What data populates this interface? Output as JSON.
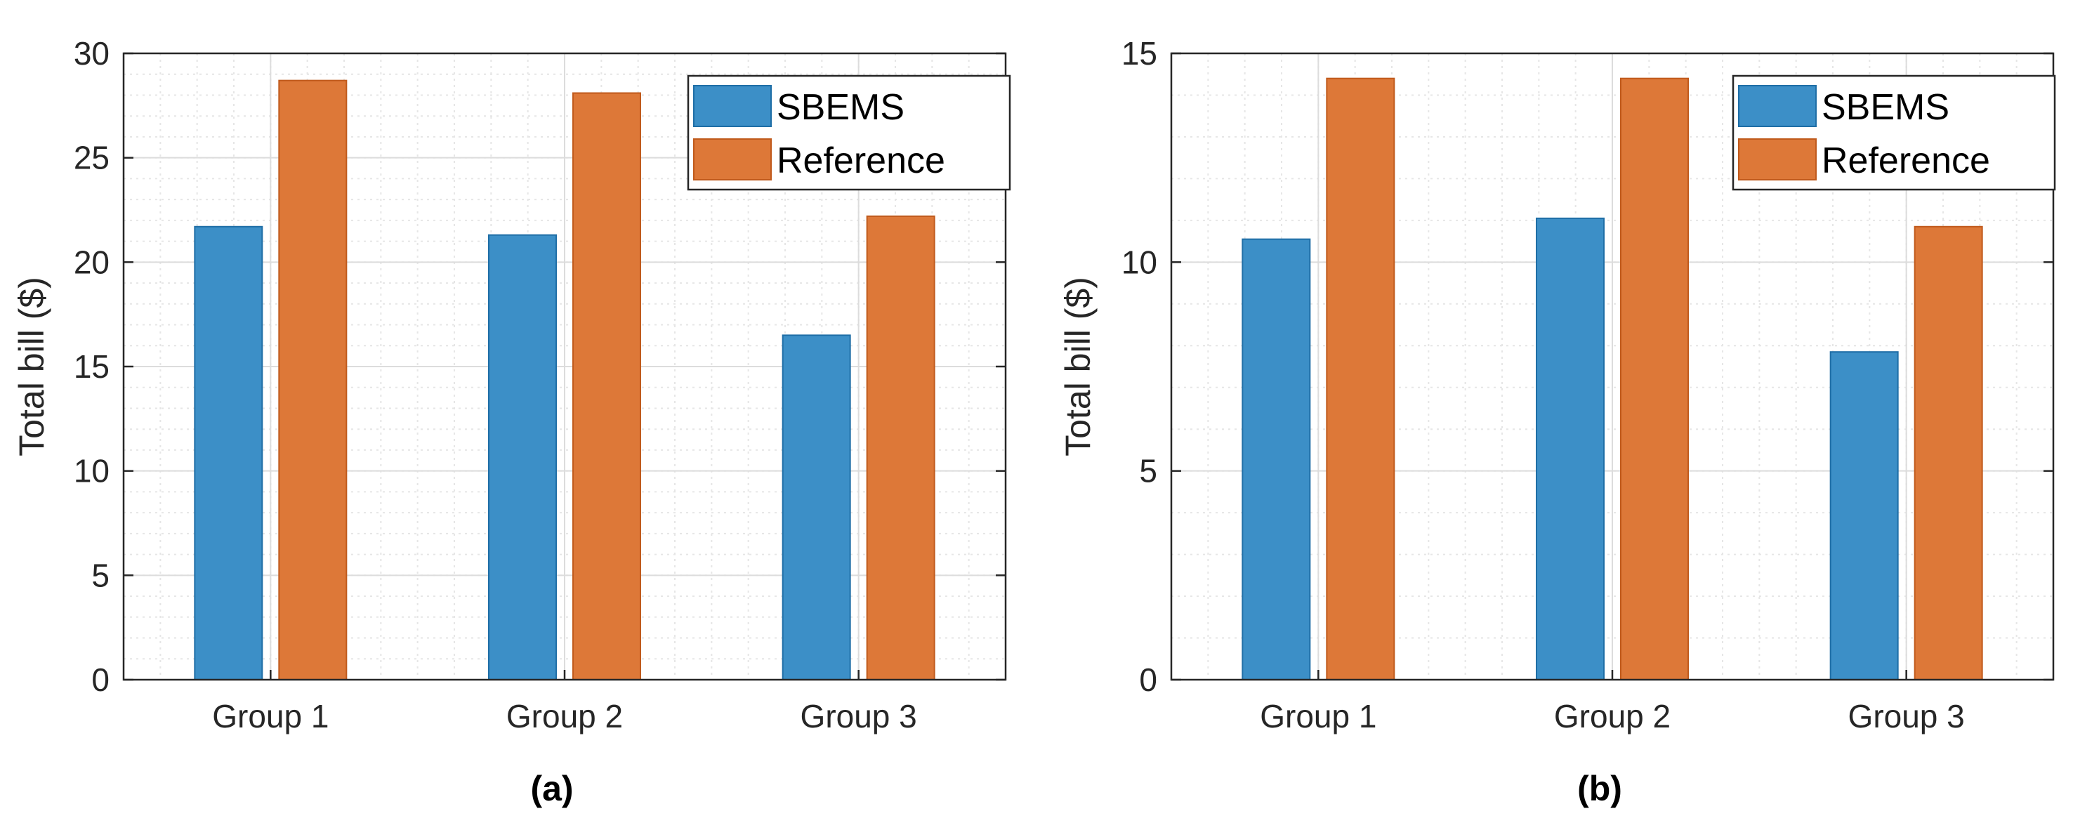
{
  "colors": {
    "series_1": "#3c8fc7",
    "series_1_edge": "#1f6ea6",
    "series_2": "#dd7838",
    "series_2_edge": "#c05a1c",
    "grid": "#dcdcdc",
    "axis": "#262626"
  },
  "chart_data": [
    {
      "type": "bar",
      "panel_label": "(a)",
      "ylabel": "Total bill ($)",
      "xlabel": "",
      "categories": [
        "Group 1",
        "Group 2",
        "Group 3"
      ],
      "ylim": [
        0,
        30
      ],
      "yticks": [
        0,
        5,
        10,
        15,
        20,
        25,
        30
      ],
      "grid": true,
      "minor_grid": true,
      "legend_position": "top-right",
      "series": [
        {
          "name": "SBEMS",
          "values": [
            21.7,
            21.3,
            16.5
          ]
        },
        {
          "name": "Reference",
          "values": [
            28.7,
            28.1,
            22.2
          ]
        }
      ]
    },
    {
      "type": "bar",
      "panel_label": "(b)",
      "ylabel": "Total bill ($)",
      "xlabel": "",
      "categories": [
        "Group 1",
        "Group 2",
        "Group 3"
      ],
      "ylim": [
        0,
        15
      ],
      "yticks": [
        0,
        5,
        10,
        15
      ],
      "grid": true,
      "minor_grid": true,
      "legend_position": "top-right",
      "series": [
        {
          "name": "SBEMS",
          "values": [
            10.55,
            11.05,
            7.85
          ]
        },
        {
          "name": "Reference",
          "values": [
            14.4,
            14.4,
            10.85
          ]
        }
      ]
    }
  ]
}
